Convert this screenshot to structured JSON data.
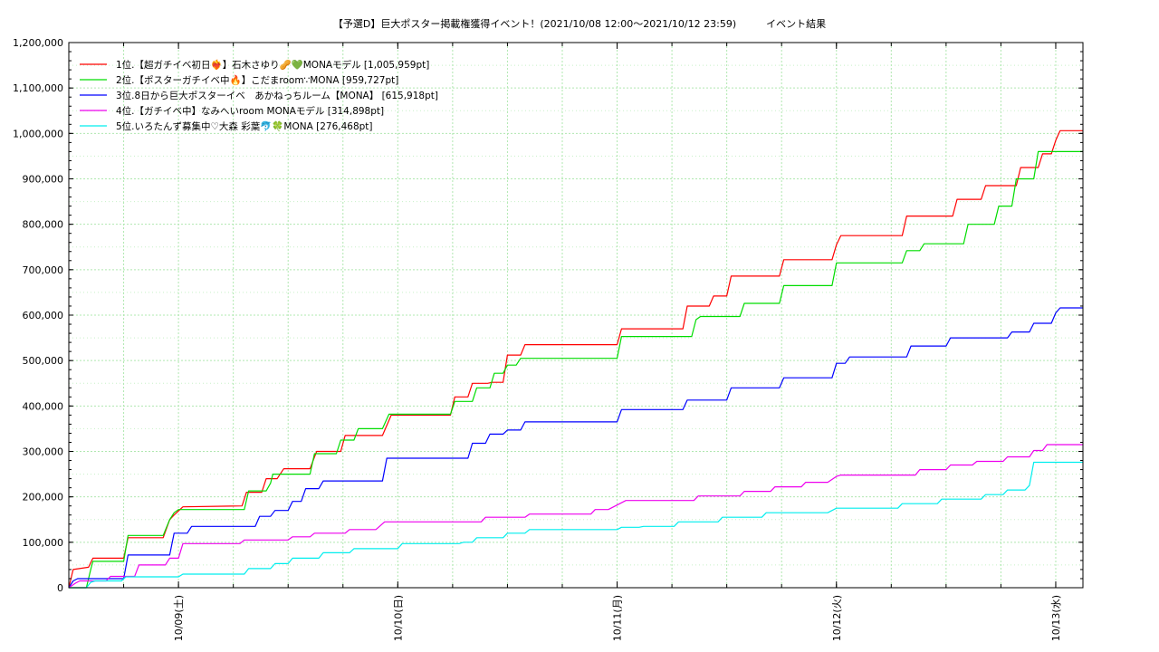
{
  "chart_data": {
    "type": "line",
    "title": "【予選D】巨大ポスター掲載権獲得イベント！(2021/10/08 12:00〜2021/10/12 23:59)　　　イベント結果",
    "xlabel": "",
    "ylabel": "",
    "ylim": [
      0,
      1200000
    ],
    "xlim": [
      0,
      4.624
    ],
    "y_ticks": [
      {
        "value": 0,
        "label": "0"
      },
      {
        "value": 100000,
        "label": "100,000"
      },
      {
        "value": 200000,
        "label": "200,000"
      },
      {
        "value": 300000,
        "label": "300,000"
      },
      {
        "value": 400000,
        "label": "400,000"
      },
      {
        "value": 500000,
        "label": "500,000"
      },
      {
        "value": 600000,
        "label": "600,000"
      },
      {
        "value": 700000,
        "label": "700,000"
      },
      {
        "value": 800000,
        "label": "800,000"
      },
      {
        "value": 900000,
        "label": "900,000"
      },
      {
        "value": 1000000,
        "label": "1,000,000"
      },
      {
        "value": 1100000,
        "label": "1,100,000"
      },
      {
        "value": 1200000,
        "label": "1,200,000"
      }
    ],
    "x_ticks": [
      {
        "value": 0.5,
        "label": "10/09(土)"
      },
      {
        "value": 1.5,
        "label": "10/10(日)"
      },
      {
        "value": 2.5,
        "label": "10/11(月)"
      },
      {
        "value": 3.5,
        "label": "10/12(火)"
      },
      {
        "value": 4.5,
        "label": "10/13(水)"
      }
    ],
    "grid": true,
    "legend_position": "top-left",
    "series": [
      {
        "name": "1位.【超ガチイベ初日❤️‍🔥】石木さゆり🥜💚MONAモデル [1,005,959pt]",
        "color": "#ff0000",
        "points": [
          [
            0,
            0
          ],
          [
            0.02,
            40000
          ],
          [
            0.09,
            45000
          ],
          [
            0.11,
            65000
          ],
          [
            0.25,
            65000
          ],
          [
            0.27,
            110000
          ],
          [
            0.43,
            110000
          ],
          [
            0.46,
            150000
          ],
          [
            0.48,
            160000
          ],
          [
            0.52,
            178000
          ],
          [
            0.79,
            180000
          ],
          [
            0.81,
            210000
          ],
          [
            0.88,
            210000
          ],
          [
            0.9,
            240000
          ],
          [
            0.95,
            240000
          ],
          [
            0.98,
            262000
          ],
          [
            1.1,
            262000
          ],
          [
            1.13,
            300000
          ],
          [
            1.24,
            300000
          ],
          [
            1.26,
            335000
          ],
          [
            1.43,
            335000
          ],
          [
            1.47,
            380000
          ],
          [
            1.74,
            380000
          ],
          [
            1.76,
            420000
          ],
          [
            1.82,
            420000
          ],
          [
            1.84,
            450000
          ],
          [
            1.91,
            450000
          ],
          [
            1.93,
            452000
          ],
          [
            1.98,
            452000
          ],
          [
            2.0,
            512000
          ],
          [
            2.06,
            512000
          ],
          [
            2.08,
            535000
          ],
          [
            2.5,
            535000
          ],
          [
            2.52,
            570000
          ],
          [
            2.8,
            570000
          ],
          [
            2.82,
            620000
          ],
          [
            2.92,
            620000
          ],
          [
            2.94,
            642000
          ],
          [
            3.0,
            642000
          ],
          [
            3.02,
            686000
          ],
          [
            3.24,
            686000
          ],
          [
            3.26,
            722000
          ],
          [
            3.48,
            722000
          ],
          [
            3.5,
            755000
          ],
          [
            3.52,
            775000
          ],
          [
            3.8,
            775000
          ],
          [
            3.82,
            818000
          ],
          [
            4.03,
            818000
          ],
          [
            4.05,
            855000
          ],
          [
            4.16,
            855000
          ],
          [
            4.18,
            885000
          ],
          [
            4.32,
            885000
          ],
          [
            4.34,
            925000
          ],
          [
            4.42,
            925000
          ],
          [
            4.44,
            955000
          ],
          [
            4.48,
            955000
          ],
          [
            4.5,
            985000
          ],
          [
            4.52,
            1005959
          ],
          [
            4.624,
            1005959
          ]
        ]
      },
      {
        "name": "2位.【ポスターガチイベ中🔥】こだまroom∵MONA [959,727pt]",
        "color": "#00dd00",
        "points": [
          [
            0,
            0
          ],
          [
            0.08,
            0
          ],
          [
            0.1,
            40000
          ],
          [
            0.11,
            58000
          ],
          [
            0.25,
            58000
          ],
          [
            0.27,
            115000
          ],
          [
            0.43,
            115000
          ],
          [
            0.46,
            150000
          ],
          [
            0.48,
            165000
          ],
          [
            0.5,
            172000
          ],
          [
            0.8,
            172000
          ],
          [
            0.82,
            213000
          ],
          [
            0.9,
            213000
          ],
          [
            0.92,
            230000
          ],
          [
            0.93,
            250000
          ],
          [
            1.1,
            250000
          ],
          [
            1.12,
            295000
          ],
          [
            1.22,
            295000
          ],
          [
            1.24,
            325000
          ],
          [
            1.3,
            325000
          ],
          [
            1.32,
            350000
          ],
          [
            1.43,
            350000
          ],
          [
            1.46,
            382000
          ],
          [
            1.74,
            382000
          ],
          [
            1.76,
            410000
          ],
          [
            1.84,
            410000
          ],
          [
            1.86,
            440000
          ],
          [
            1.92,
            440000
          ],
          [
            1.94,
            472000
          ],
          [
            1.98,
            472000
          ],
          [
            2.0,
            490000
          ],
          [
            2.04,
            490000
          ],
          [
            2.06,
            505000
          ],
          [
            2.5,
            505000
          ],
          [
            2.52,
            553000
          ],
          [
            2.84,
            553000
          ],
          [
            2.86,
            590000
          ],
          [
            2.88,
            597000
          ],
          [
            3.06,
            597000
          ],
          [
            3.08,
            626000
          ],
          [
            3.24,
            626000
          ],
          [
            3.26,
            665000
          ],
          [
            3.48,
            665000
          ],
          [
            3.5,
            715000
          ],
          [
            3.8,
            715000
          ],
          [
            3.82,
            742000
          ],
          [
            3.88,
            742000
          ],
          [
            3.9,
            757000
          ],
          [
            4.08,
            757000
          ],
          [
            4.1,
            800000
          ],
          [
            4.22,
            800000
          ],
          [
            4.24,
            840000
          ],
          [
            4.3,
            840000
          ],
          [
            4.32,
            900000
          ],
          [
            4.4,
            900000
          ],
          [
            4.42,
            960000
          ],
          [
            4.624,
            960000
          ]
        ]
      },
      {
        "name": "3位.8日から巨大ポスターイベ　あかねっちルーム【MONA】 [615,918pt]",
        "color": "#0000ff",
        "points": [
          [
            0,
            0
          ],
          [
            0.02,
            15000
          ],
          [
            0.04,
            20000
          ],
          [
            0.25,
            20000
          ],
          [
            0.27,
            72000
          ],
          [
            0.46,
            72000
          ],
          [
            0.48,
            120000
          ],
          [
            0.54,
            120000
          ],
          [
            0.56,
            135000
          ],
          [
            0.85,
            135000
          ],
          [
            0.87,
            157000
          ],
          [
            0.92,
            157000
          ],
          [
            0.94,
            170000
          ],
          [
            1.0,
            170000
          ],
          [
            1.02,
            190000
          ],
          [
            1.06,
            190000
          ],
          [
            1.08,
            218000
          ],
          [
            1.14,
            218000
          ],
          [
            1.16,
            235000
          ],
          [
            1.43,
            235000
          ],
          [
            1.45,
            285000
          ],
          [
            1.82,
            285000
          ],
          [
            1.84,
            318000
          ],
          [
            1.9,
            318000
          ],
          [
            1.92,
            338000
          ],
          [
            1.98,
            338000
          ],
          [
            2.0,
            347000
          ],
          [
            2.06,
            347000
          ],
          [
            2.08,
            365000
          ],
          [
            2.5,
            365000
          ],
          [
            2.52,
            392000
          ],
          [
            2.8,
            392000
          ],
          [
            2.82,
            413000
          ],
          [
            3.0,
            413000
          ],
          [
            3.02,
            440000
          ],
          [
            3.24,
            440000
          ],
          [
            3.26,
            462000
          ],
          [
            3.48,
            462000
          ],
          [
            3.5,
            494000
          ],
          [
            3.54,
            494000
          ],
          [
            3.56,
            508000
          ],
          [
            3.82,
            508000
          ],
          [
            3.84,
            532000
          ],
          [
            4.0,
            532000
          ],
          [
            4.02,
            550000
          ],
          [
            4.28,
            550000
          ],
          [
            4.3,
            563000
          ],
          [
            4.38,
            563000
          ],
          [
            4.4,
            582000
          ],
          [
            4.48,
            582000
          ],
          [
            4.5,
            605000
          ],
          [
            4.52,
            615918
          ],
          [
            4.624,
            615918
          ]
        ]
      },
      {
        "name": "4位.【ガチイベ中】なみへいroom MONAモデル [314,898pt]",
        "color": "#ee00ee",
        "points": [
          [
            0,
            0
          ],
          [
            0.03,
            10000
          ],
          [
            0.05,
            15000
          ],
          [
            0.17,
            15000
          ],
          [
            0.19,
            25000
          ],
          [
            0.3,
            25000
          ],
          [
            0.32,
            50000
          ],
          [
            0.44,
            50000
          ],
          [
            0.46,
            65000
          ],
          [
            0.5,
            65000
          ],
          [
            0.52,
            97000
          ],
          [
            0.78,
            97000
          ],
          [
            0.8,
            105000
          ],
          [
            1.0,
            105000
          ],
          [
            1.02,
            112000
          ],
          [
            1.1,
            112000
          ],
          [
            1.12,
            120000
          ],
          [
            1.26,
            120000
          ],
          [
            1.28,
            128000
          ],
          [
            1.4,
            128000
          ],
          [
            1.44,
            145000
          ],
          [
            1.88,
            145000
          ],
          [
            1.9,
            155000
          ],
          [
            2.08,
            155000
          ],
          [
            2.1,
            162000
          ],
          [
            2.38,
            162000
          ],
          [
            2.4,
            172000
          ],
          [
            2.46,
            172000
          ],
          [
            2.5,
            182000
          ],
          [
            2.54,
            192000
          ],
          [
            2.85,
            192000
          ],
          [
            2.87,
            202000
          ],
          [
            3.06,
            202000
          ],
          [
            3.08,
            212000
          ],
          [
            3.2,
            212000
          ],
          [
            3.22,
            222000
          ],
          [
            3.34,
            222000
          ],
          [
            3.36,
            232000
          ],
          [
            3.46,
            232000
          ],
          [
            3.5,
            245000
          ],
          [
            3.52,
            248000
          ],
          [
            3.86,
            248000
          ],
          [
            3.88,
            260000
          ],
          [
            4.0,
            260000
          ],
          [
            4.02,
            270000
          ],
          [
            4.12,
            270000
          ],
          [
            4.14,
            278000
          ],
          [
            4.26,
            278000
          ],
          [
            4.28,
            288000
          ],
          [
            4.38,
            288000
          ],
          [
            4.4,
            302000
          ],
          [
            4.44,
            302000
          ],
          [
            4.46,
            315000
          ],
          [
            4.624,
            315000
          ]
        ]
      },
      {
        "name": "5位.いろたんず募集中♡大森 彩葉🐬🍀MONA [276,468pt]",
        "color": "#00eeee",
        "points": [
          [
            0,
            0
          ],
          [
            0.08,
            0
          ],
          [
            0.1,
            12000
          ],
          [
            0.12,
            15000
          ],
          [
            0.24,
            15000
          ],
          [
            0.26,
            24000
          ],
          [
            0.5,
            24000
          ],
          [
            0.52,
            30000
          ],
          [
            0.8,
            30000
          ],
          [
            0.82,
            42000
          ],
          [
            0.92,
            42000
          ],
          [
            0.94,
            53000
          ],
          [
            1.0,
            53000
          ],
          [
            1.02,
            65000
          ],
          [
            1.14,
            65000
          ],
          [
            1.16,
            77000
          ],
          [
            1.28,
            77000
          ],
          [
            1.3,
            86000
          ],
          [
            1.5,
            86000
          ],
          [
            1.52,
            97000
          ],
          [
            1.78,
            97000
          ],
          [
            1.8,
            100000
          ],
          [
            1.84,
            100000
          ],
          [
            1.86,
            110000
          ],
          [
            1.98,
            110000
          ],
          [
            2.0,
            120000
          ],
          [
            2.08,
            120000
          ],
          [
            2.1,
            128000
          ],
          [
            2.5,
            128000
          ],
          [
            2.52,
            133000
          ],
          [
            2.6,
            133000
          ],
          [
            2.62,
            135000
          ],
          [
            2.76,
            135000
          ],
          [
            2.78,
            145000
          ],
          [
            2.96,
            145000
          ],
          [
            2.98,
            155000
          ],
          [
            3.16,
            155000
          ],
          [
            3.18,
            165000
          ],
          [
            3.46,
            165000
          ],
          [
            3.5,
            175000
          ],
          [
            3.78,
            175000
          ],
          [
            3.8,
            185000
          ],
          [
            3.96,
            185000
          ],
          [
            3.98,
            195000
          ],
          [
            4.16,
            195000
          ],
          [
            4.18,
            205000
          ],
          [
            4.26,
            205000
          ],
          [
            4.28,
            215000
          ],
          [
            4.36,
            215000
          ],
          [
            4.38,
            225000
          ],
          [
            4.4,
            276000
          ],
          [
            4.624,
            276000
          ]
        ]
      }
    ]
  }
}
